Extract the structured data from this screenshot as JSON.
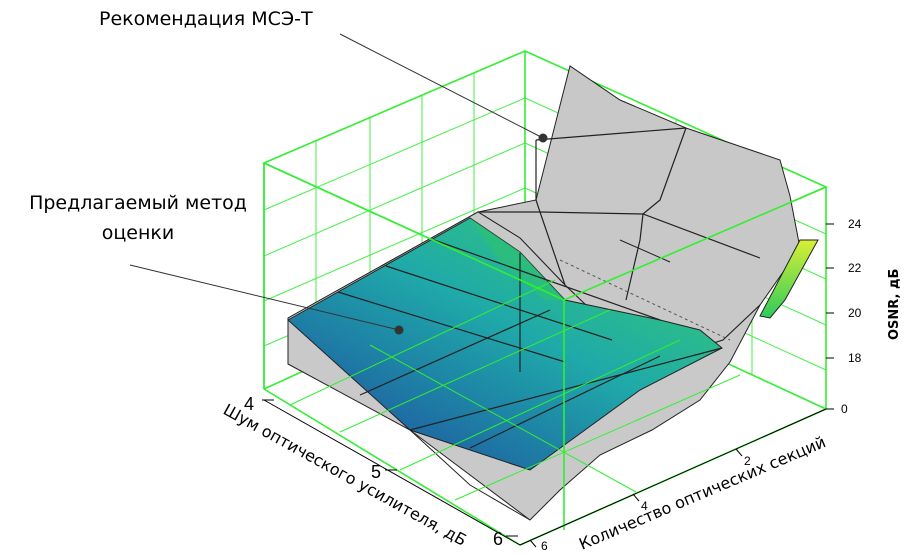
{
  "chart_data": {
    "type": "surface3d",
    "annotations": {
      "itu": "Рекомендация МСЭ-Т",
      "proposed_line1": "Предлагаемый метод",
      "proposed_line2": "оценки"
    },
    "axes": {
      "noise": {
        "label": "Шум оптического усилителя, дБ",
        "ticks": [
          "4",
          "5",
          "6"
        ],
        "range": [
          4,
          6
        ]
      },
      "sections": {
        "label": "Количество оптических секций",
        "ticks": [
          "0",
          "2",
          "4",
          "6"
        ],
        "range": [
          0,
          6
        ]
      },
      "osnr": {
        "label": "OSNR, дБ",
        "ticks": [
          "18",
          "20",
          "22",
          "24"
        ],
        "range": [
          16,
          25.5
        ]
      }
    },
    "series": [
      {
        "name": "Рекомендация МСЭ-Т",
        "color": "#c8c8c8"
      },
      {
        "name": "Предлагаемый метод оценки",
        "color_low": "#1e4aa0",
        "color_high": "#2ec86a"
      }
    ],
    "grid": true,
    "box_color": "#33ee33"
  }
}
